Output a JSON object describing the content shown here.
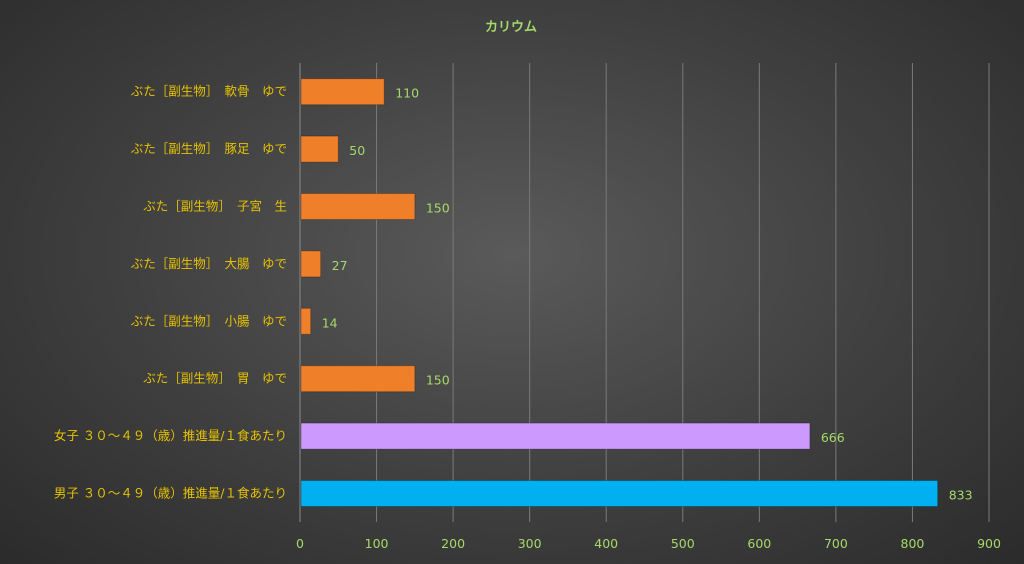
{
  "chart_data": {
    "type": "bar",
    "orientation": "horizontal",
    "title": "カリウム",
    "categories": [
      "ぶた［副生物］　軟骨　ゆで",
      "ぶた［副生物］　豚足　ゆで",
      "ぶた［副生物］　子宮　生",
      "ぶた［副生物］　大腸　ゆで",
      "ぶた［副生物］　小腸　ゆで",
      "ぶた［副生物］　胃　ゆで",
      "女子 ３０～４９（歳）推進量/１食あたり",
      "男子 ３０～４９（歳）推進量/１食あたり"
    ],
    "values": [
      110,
      50,
      150,
      27,
      14,
      150,
      666,
      833
    ],
    "bar_colors": [
      "#f07f2a",
      "#f07f2a",
      "#f07f2a",
      "#f07f2a",
      "#f07f2a",
      "#f07f2a",
      "#cc99ff",
      "#00b0f0"
    ],
    "xlim": [
      0,
      900
    ],
    "x_ticks": [
      0,
      100,
      200,
      300,
      400,
      500,
      600,
      700,
      800,
      900
    ],
    "grid": true,
    "data_labels": true,
    "legend": "none"
  }
}
